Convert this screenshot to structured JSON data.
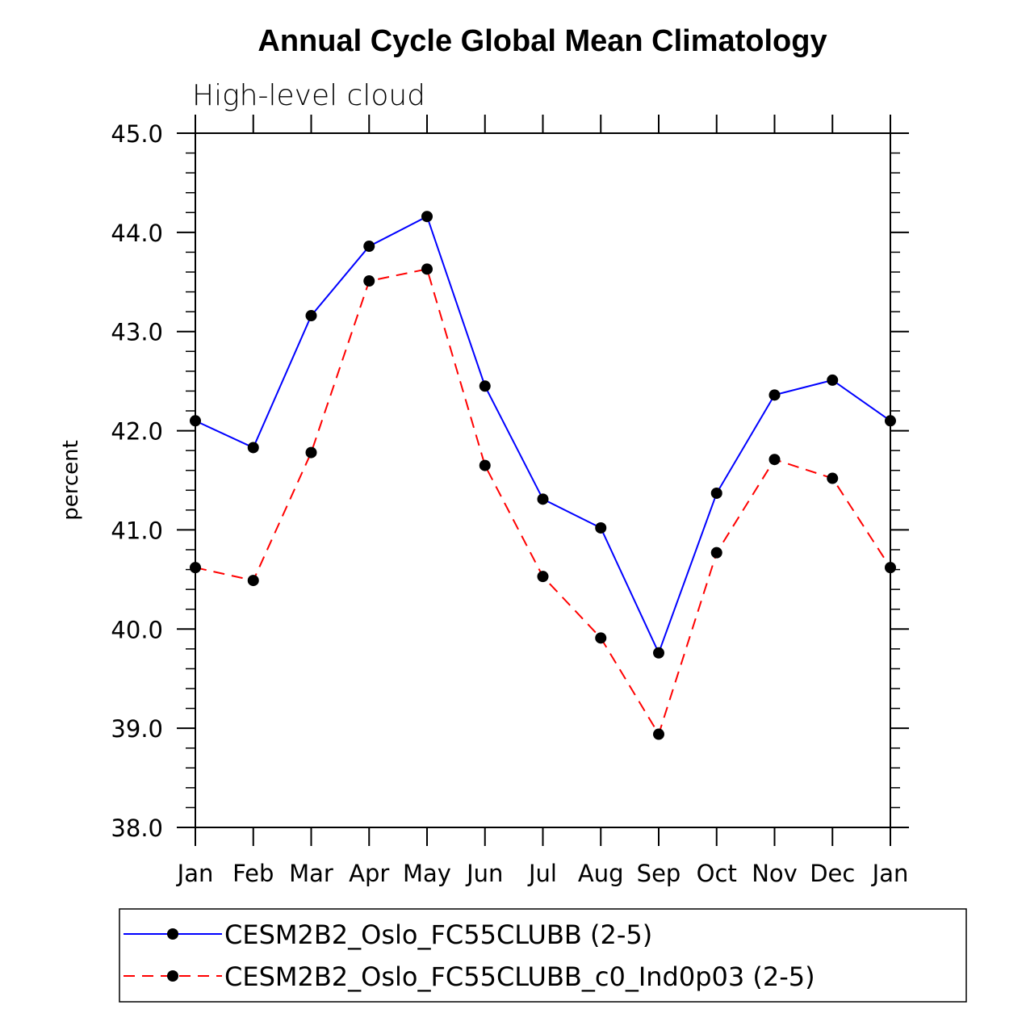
{
  "chart_data": {
    "type": "line",
    "title": "Annual Cycle Global Mean Climatology",
    "subtitle": "High-level cloud",
    "xlabel": "",
    "ylabel": "percent",
    "categories": [
      "Jan",
      "Feb",
      "Mar",
      "Apr",
      "May",
      "Jun",
      "Jul",
      "Aug",
      "Sep",
      "Oct",
      "Nov",
      "Dec",
      "Jan"
    ],
    "ylim": [
      38.0,
      45.0
    ],
    "yticks": [
      "38.0",
      "39.0",
      "40.0",
      "41.0",
      "42.0",
      "43.0",
      "44.0",
      "45.0"
    ],
    "grid": false,
    "legend_position": "bottom",
    "series": [
      {
        "name": "CESM2B2_Oslo_FC55CLUBB (2-5)",
        "color": "#0000ff",
        "dash": "solid",
        "values": [
          42.1,
          41.83,
          43.16,
          43.86,
          44.16,
          42.45,
          41.31,
          41.02,
          39.76,
          41.37,
          42.36,
          42.51,
          42.1
        ]
      },
      {
        "name": "CESM2B2_Oslo_FC55CLUBB_c0_Ind0p03 (2-5)",
        "color": "#ff0000",
        "dash": "dashed",
        "values": [
          40.62,
          40.49,
          41.78,
          43.51,
          43.63,
          41.65,
          40.53,
          39.91,
          38.94,
          40.77,
          41.71,
          41.52,
          40.62
        ]
      }
    ]
  }
}
